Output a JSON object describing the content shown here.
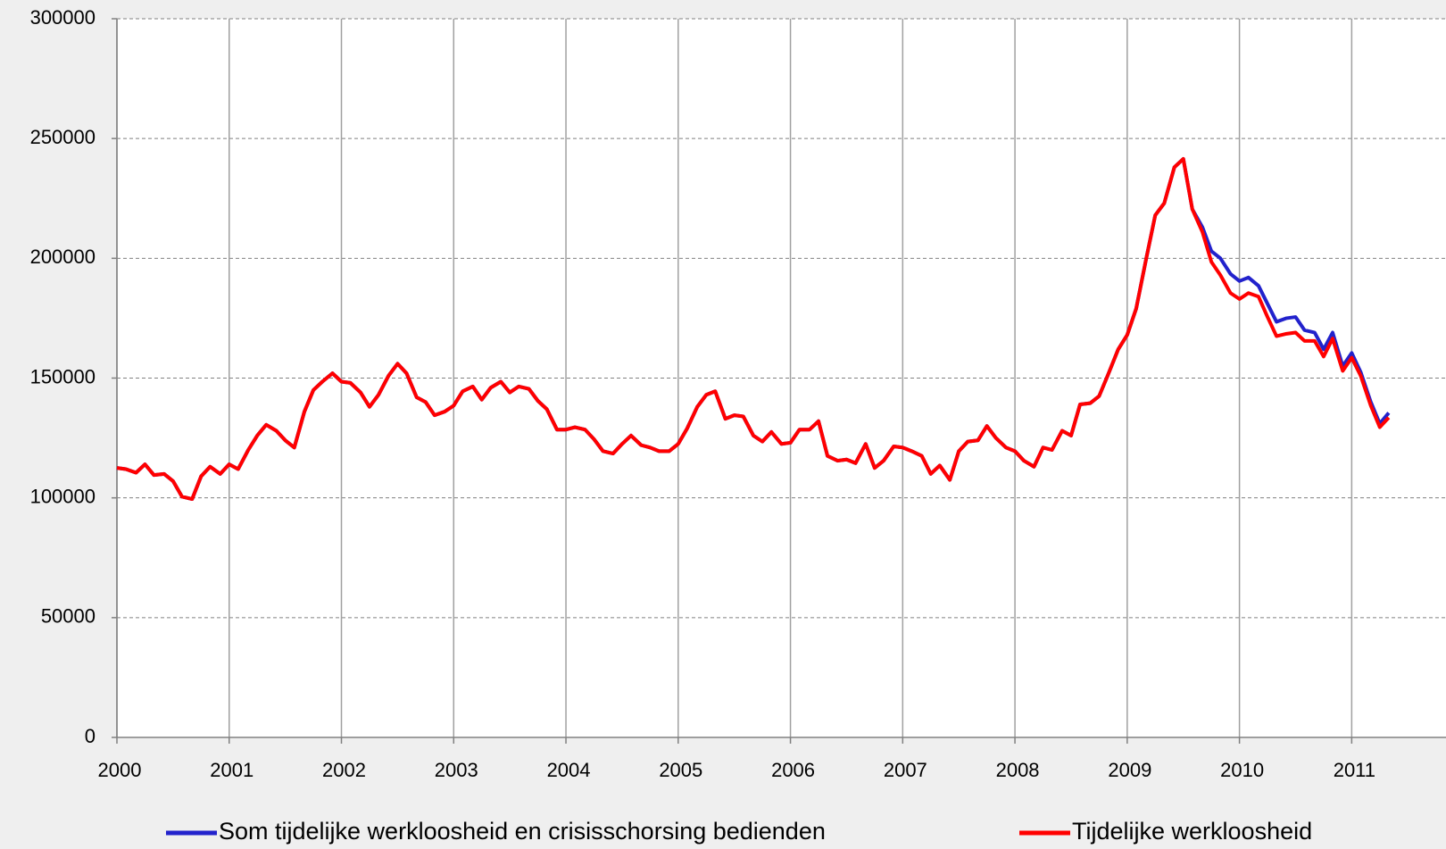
{
  "chart_data": {
    "type": "line",
    "x": [
      2000,
      2000.08,
      2000.17,
      2000.25,
      2000.33,
      2000.42,
      2000.5,
      2000.58,
      2000.67,
      2000.75,
      2000.83,
      2000.92,
      2001,
      2001.08,
      2001.17,
      2001.25,
      2001.33,
      2001.42,
      2001.5,
      2001.58,
      2001.67,
      2001.75,
      2001.83,
      2001.92,
      2002,
      2002.08,
      2002.17,
      2002.25,
      2002.33,
      2002.42,
      2002.5,
      2002.58,
      2002.67,
      2002.75,
      2002.83,
      2002.92,
      2003,
      2003.08,
      2003.17,
      2003.25,
      2003.33,
      2003.42,
      2003.5,
      2003.58,
      2003.67,
      2003.75,
      2003.83,
      2003.92,
      2004,
      2004.08,
      2004.17,
      2004.25,
      2004.33,
      2004.42,
      2004.5,
      2004.58,
      2004.67,
      2004.75,
      2004.83,
      2004.92,
      2005,
      2005.08,
      2005.17,
      2005.25,
      2005.33,
      2005.42,
      2005.5,
      2005.58,
      2005.67,
      2005.75,
      2005.83,
      2005.92,
      2006,
      2006.08,
      2006.17,
      2006.25,
      2006.33,
      2006.42,
      2006.5,
      2006.58,
      2006.67,
      2006.75,
      2006.83,
      2006.92,
      2007,
      2007.08,
      2007.17,
      2007.25,
      2007.33,
      2007.42,
      2007.5,
      2007.58,
      2007.67,
      2007.75,
      2007.83,
      2007.92,
      2008,
      2008.08,
      2008.17,
      2008.25,
      2008.33,
      2008.42,
      2008.5,
      2008.58,
      2008.67,
      2008.75,
      2008.83,
      2008.92,
      2009,
      2009.08,
      2009.17,
      2009.25,
      2009.33,
      2009.42,
      2009.5,
      2009.58,
      2009.67,
      2009.75,
      2009.83,
      2009.92,
      2010,
      2010.08,
      2010.17,
      2010.25,
      2010.33,
      2010.42,
      2010.5,
      2010.58,
      2010.67,
      2010.75,
      2010.83,
      2010.92,
      2011,
      2011.08,
      2011.17,
      2011.25,
      2011.33
    ],
    "series": [
      {
        "name": "Som tijdelijke werkloosheid en crisisschorsing bedienden",
        "color": "#2222cc",
        "values": [
          112500,
          112000,
          110500,
          114000,
          109500,
          110000,
          107000,
          100500,
          99500,
          109000,
          113000,
          110000,
          114000,
          112000,
          120000,
          126000,
          130500,
          128000,
          124000,
          121000,
          136000,
          145000,
          148500,
          152000,
          148500,
          148000,
          144000,
          138000,
          143000,
          151000,
          156000,
          152000,
          142000,
          140000,
          134500,
          136000,
          138500,
          144500,
          146500,
          141000,
          146000,
          148500,
          144000,
          146500,
          145500,
          140500,
          137000,
          128500,
          128500,
          129500,
          128500,
          124500,
          119500,
          118500,
          122500,
          126000,
          122000,
          121000,
          119500,
          119500,
          122500,
          129000,
          138000,
          143000,
          144500,
          133000,
          134500,
          134000,
          126000,
          123500,
          127500,
          122500,
          123000,
          128500,
          128500,
          132000,
          117500,
          115500,
          116000,
          114500,
          122500,
          112500,
          115500,
          121500,
          121000,
          119500,
          117500,
          110000,
          113500,
          107500,
          119500,
          123500,
          124000,
          130000,
          125000,
          121000,
          119500,
          115500,
          113000,
          121000,
          120000,
          128000,
          126000,
          139000,
          139500,
          142500,
          151500,
          162000,
          168000,
          179000,
          200000,
          218000,
          223000,
          238000,
          241500,
          220500,
          213000,
          203000,
          200000,
          193500,
          190500,
          192000,
          188500,
          181000,
          173500,
          175000,
          175500,
          170000,
          169000,
          162000,
          169000,
          155000,
          160500,
          152500,
          140000,
          131000,
          135500
        ]
      },
      {
        "name": "Tijdelijke werkloosheid",
        "color": "#ff0000",
        "values": [
          112500,
          112000,
          110500,
          114000,
          109500,
          110000,
          107000,
          100500,
          99500,
          109000,
          113000,
          110000,
          114000,
          112000,
          120000,
          126000,
          130500,
          128000,
          124000,
          121000,
          136000,
          145000,
          148500,
          152000,
          148500,
          148000,
          144000,
          138000,
          143000,
          151000,
          156000,
          152000,
          142000,
          140000,
          134500,
          136000,
          138500,
          144500,
          146500,
          141000,
          146000,
          148500,
          144000,
          146500,
          145500,
          140500,
          137000,
          128500,
          128500,
          129500,
          128500,
          124500,
          119500,
          118500,
          122500,
          126000,
          122000,
          121000,
          119500,
          119500,
          122500,
          129000,
          138000,
          143000,
          144500,
          133000,
          134500,
          134000,
          126000,
          123500,
          127500,
          122500,
          123000,
          128500,
          128500,
          132000,
          117500,
          115500,
          116000,
          114500,
          122500,
          112500,
          115500,
          121500,
          121000,
          119500,
          117500,
          110000,
          113500,
          107500,
          119500,
          123500,
          124000,
          130000,
          125000,
          121000,
          119500,
          115500,
          113000,
          121000,
          120000,
          128000,
          126000,
          139000,
          139500,
          142500,
          151500,
          162000,
          168000,
          179000,
          200000,
          218000,
          223000,
          238000,
          241500,
          220500,
          211000,
          198500,
          193000,
          185500,
          183000,
          185500,
          184000,
          175500,
          167500,
          168500,
          169000,
          165500,
          165500,
          159000,
          166500,
          153000,
          158500,
          151000,
          138500,
          129500,
          133500
        ]
      }
    ],
    "xlim": [
      2000,
      2011.84
    ],
    "xticks": [
      2000,
      2001,
      2002,
      2003,
      2004,
      2005,
      2006,
      2007,
      2008,
      2009,
      2010,
      2011
    ],
    "ylim": [
      0,
      300000
    ],
    "yticks": [
      0,
      50000,
      100000,
      150000,
      200000,
      250000,
      300000
    ],
    "grid": true,
    "legend": "bottom"
  }
}
